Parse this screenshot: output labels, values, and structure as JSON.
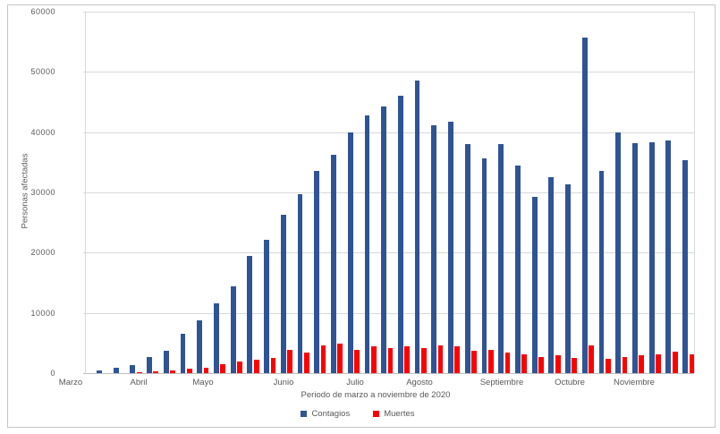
{
  "chart": {
    "y_axis_title": "Personas afectadas",
    "x_axis_title": "Periodo de marzo a noviembre de 2020",
    "y_tick_labels": [
      "60000",
      "50000",
      "40000",
      "30000",
      "20000",
      "10000",
      "0"
    ],
    "month_labels": [
      "Marzo",
      "Abril",
      "Mayo",
      "Junio",
      "Julio",
      "Agosto",
      "Septiembre",
      "Octubre",
      "Noviembre"
    ],
    "legend": [
      {
        "label": "Contagios",
        "color": "#2F5496"
      },
      {
        "label": "Muertes",
        "color": "#FF0000"
      }
    ]
  },
  "chart_data": {
    "type": "bar",
    "title": "",
    "xlabel": "Periodo de marzo a noviembre de 2020",
    "ylabel": "Personas afectadas",
    "x_description": "36 consecutive weekly periods from Marzo (March) to Noviembre (November) 2020; axis labeled with month names only",
    "month_tick_labels": [
      "Marzo",
      "Abril",
      "Mayo",
      "Junio",
      "Julio",
      "Agosto",
      "Septiembre",
      "Octubre",
      "Noviembre"
    ],
    "ylim": [
      0,
      60000
    ],
    "y_tick_step": 10000,
    "grid": true,
    "legend_position": "bottom",
    "series": [
      {
        "name": "Contagios",
        "color": "#2F5496",
        "values": [
          500,
          850,
          1400,
          2700,
          3700,
          6500,
          8800,
          11600,
          14400,
          19400,
          22100,
          26300,
          29700,
          33600,
          36300,
          39900,
          42800,
          44300,
          46100,
          48600,
          41200,
          41800,
          38000,
          35700,
          38100,
          34400,
          29200,
          32500,
          31300,
          55700,
          33500,
          39900,
          38200,
          38300,
          38650,
          35350
        ]
      },
      {
        "name": "Muertes",
        "color": "#FF0000",
        "values": [
          20,
          50,
          150,
          350,
          500,
          700,
          950,
          1450,
          1900,
          2300,
          2500,
          3800,
          3350,
          4650,
          4900,
          3900,
          4450,
          4150,
          4450,
          4100,
          4550,
          4450,
          3700,
          3800,
          3400,
          3150,
          2650,
          2950,
          2550,
          4650,
          2400,
          2700,
          3000,
          3200,
          3550,
          3100
        ]
      }
    ]
  }
}
